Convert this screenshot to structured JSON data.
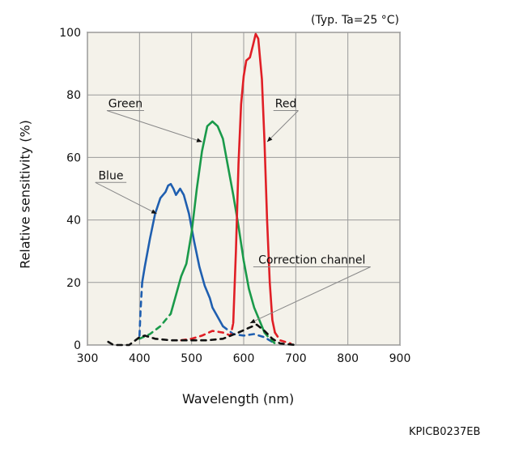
{
  "chart_data": {
    "type": "line",
    "condition_note": "(Typ. Ta=25 °C)",
    "xlabel": "Wavelength (nm)",
    "ylabel": "Relative sensitivity (%)",
    "xlim": [
      300,
      900
    ],
    "ylim": [
      0,
      100
    ],
    "xticks": [
      "300",
      "400",
      "500",
      "600",
      "700",
      "800",
      "900"
    ],
    "yticks": [
      "0",
      "20",
      "40",
      "60",
      "80",
      "100"
    ],
    "grid": true,
    "plot_background": "#f4f2ea",
    "figure_code": "KPICB0237EB",
    "series": [
      {
        "name": "Blue",
        "color": "#1f5fb0",
        "label_at": [
          345,
          52
        ],
        "pointer_to": [
          433,
          42
        ],
        "values": [
          {
            "x": 400,
            "y": 3,
            "dash": true
          },
          {
            "x": 402,
            "y": 11,
            "dash": true
          },
          {
            "x": 405,
            "y": 20
          },
          {
            "x": 410,
            "y": 25
          },
          {
            "x": 420,
            "y": 34
          },
          {
            "x": 430,
            "y": 42
          },
          {
            "x": 440,
            "y": 47
          },
          {
            "x": 450,
            "y": 49
          },
          {
            "x": 455,
            "y": 51
          },
          {
            "x": 460,
            "y": 51.5
          },
          {
            "x": 465,
            "y": 50
          },
          {
            "x": 470,
            "y": 48
          },
          {
            "x": 478,
            "y": 50
          },
          {
            "x": 485,
            "y": 48
          },
          {
            "x": 495,
            "y": 42
          },
          {
            "x": 505,
            "y": 33
          },
          {
            "x": 515,
            "y": 25
          },
          {
            "x": 525,
            "y": 19
          },
          {
            "x": 535,
            "y": 15
          },
          {
            "x": 540,
            "y": 12
          },
          {
            "x": 560,
            "y": 6,
            "dash": true
          },
          {
            "x": 580,
            "y": 3.5,
            "dash": true
          },
          {
            "x": 600,
            "y": 3,
            "dash": true
          },
          {
            "x": 620,
            "y": 3.5,
            "dash": true
          },
          {
            "x": 640,
            "y": 2.5,
            "dash": true
          },
          {
            "x": 660,
            "y": 0.5,
            "dash": true
          }
        ]
      },
      {
        "name": "Green",
        "color": "#1a9a4a",
        "label_at": [
          373,
          75
        ],
        "pointer_to": [
          520,
          65
        ],
        "values": [
          {
            "x": 400,
            "y": 2,
            "dash": true
          },
          {
            "x": 420,
            "y": 3.5,
            "dash": true
          },
          {
            "x": 440,
            "y": 6,
            "dash": true
          },
          {
            "x": 450,
            "y": 8,
            "dash": true
          },
          {
            "x": 460,
            "y": 10
          },
          {
            "x": 470,
            "y": 16
          },
          {
            "x": 480,
            "y": 22
          },
          {
            "x": 490,
            "y": 26
          },
          {
            "x": 500,
            "y": 36
          },
          {
            "x": 510,
            "y": 50
          },
          {
            "x": 520,
            "y": 62
          },
          {
            "x": 530,
            "y": 70
          },
          {
            "x": 540,
            "y": 71.5
          },
          {
            "x": 550,
            "y": 70
          },
          {
            "x": 560,
            "y": 66
          },
          {
            "x": 570,
            "y": 57
          },
          {
            "x": 580,
            "y": 48
          },
          {
            "x": 590,
            "y": 38
          },
          {
            "x": 600,
            "y": 27
          },
          {
            "x": 610,
            "y": 18
          },
          {
            "x": 620,
            "y": 12
          },
          {
            "x": 630,
            "y": 8
          },
          {
            "x": 640,
            "y": 4,
            "dash": true
          },
          {
            "x": 650,
            "y": 2,
            "dash": true
          },
          {
            "x": 660,
            "y": 0.5,
            "dash": true
          }
        ]
      },
      {
        "name": "Red",
        "color": "#e01f26",
        "label_at": [
          681,
          75
        ],
        "pointer_to": [
          645,
          65
        ],
        "values": [
          {
            "x": 480,
            "y": 1.5,
            "dash": true
          },
          {
            "x": 500,
            "y": 2,
            "dash": true
          },
          {
            "x": 520,
            "y": 3,
            "dash": true
          },
          {
            "x": 540,
            "y": 4.5,
            "dash": true
          },
          {
            "x": 560,
            "y": 4,
            "dash": true
          },
          {
            "x": 575,
            "y": 3,
            "dash": true
          },
          {
            "x": 580,
            "y": 7
          },
          {
            "x": 585,
            "y": 30
          },
          {
            "x": 590,
            "y": 58
          },
          {
            "x": 595,
            "y": 77
          },
          {
            "x": 600,
            "y": 86
          },
          {
            "x": 605,
            "y": 91
          },
          {
            "x": 612,
            "y": 92
          },
          {
            "x": 618,
            "y": 96
          },
          {
            "x": 623,
            "y": 99.5
          },
          {
            "x": 628,
            "y": 98
          },
          {
            "x": 635,
            "y": 85
          },
          {
            "x": 640,
            "y": 65
          },
          {
            "x": 645,
            "y": 40
          },
          {
            "x": 650,
            "y": 20
          },
          {
            "x": 655,
            "y": 8
          },
          {
            "x": 660,
            "y": 4,
            "dash": true
          },
          {
            "x": 670,
            "y": 1.5,
            "dash": true
          },
          {
            "x": 690,
            "y": 0.5,
            "dash": true
          }
        ]
      },
      {
        "name": "Correction channel",
        "color": "#111111",
        "label_at": [
          731,
          25
        ],
        "pointer_to": [
          612,
          7
        ],
        "values": [
          {
            "x": 340,
            "y": 1,
            "dash": true
          },
          {
            "x": 350,
            "y": 0,
            "dash": true
          },
          {
            "x": 380,
            "y": 0,
            "dash": true
          },
          {
            "x": 400,
            "y": 2.5,
            "dash": true
          },
          {
            "x": 410,
            "y": 3,
            "dash": true
          },
          {
            "x": 430,
            "y": 2,
            "dash": true
          },
          {
            "x": 460,
            "y": 1.5,
            "dash": true
          },
          {
            "x": 500,
            "y": 1.5,
            "dash": true
          },
          {
            "x": 530,
            "y": 1.5,
            "dash": true
          },
          {
            "x": 560,
            "y": 2,
            "dash": true
          },
          {
            "x": 590,
            "y": 4,
            "dash": true
          },
          {
            "x": 610,
            "y": 5.5,
            "dash": true
          },
          {
            "x": 625,
            "y": 6.5,
            "dash": true
          },
          {
            "x": 640,
            "y": 4.5,
            "dash": true
          },
          {
            "x": 655,
            "y": 2,
            "dash": true
          },
          {
            "x": 670,
            "y": 0.5,
            "dash": true
          },
          {
            "x": 700,
            "y": 0,
            "dash": true
          }
        ]
      }
    ]
  }
}
